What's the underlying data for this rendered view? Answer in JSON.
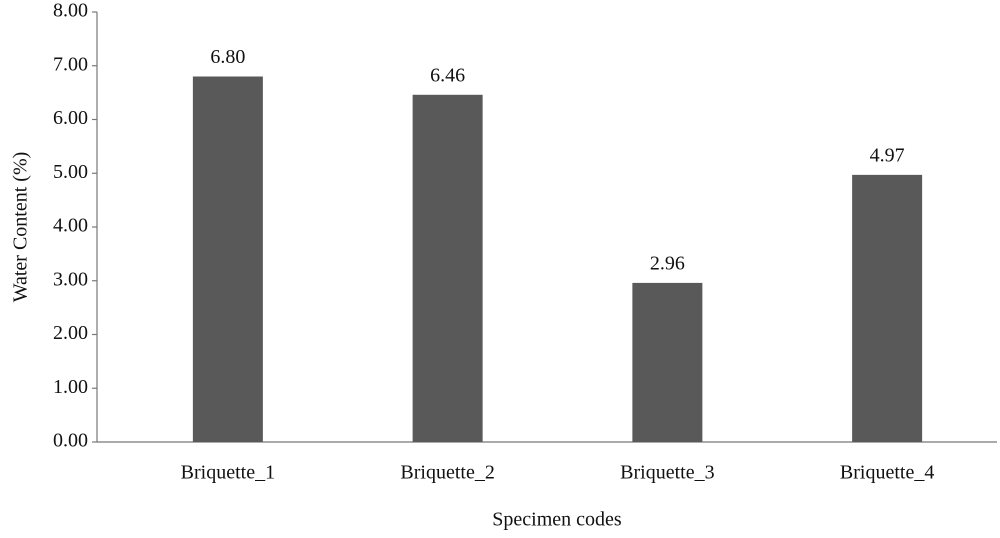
{
  "chart_data": {
    "type": "bar",
    "x_label": "Specimen codes",
    "y_label": "Water Content (%)",
    "categories": [
      "Briquette_1",
      "Briquette_2",
      "Briquette_3",
      "Briquette_4"
    ],
    "values": [
      6.8,
      6.46,
      2.96,
      4.97
    ],
    "value_labels": [
      "6.80",
      "6.46",
      "2.96",
      "4.97"
    ],
    "color": "#595959",
    "ylim": [
      0,
      8
    ],
    "yticks": [
      {
        "value": 0,
        "label": "0.00"
      },
      {
        "value": 1,
        "label": "1.00"
      },
      {
        "value": 2,
        "label": "2.00"
      },
      {
        "value": 3,
        "label": "3.00"
      },
      {
        "value": 4,
        "label": "4.00"
      },
      {
        "value": 5,
        "label": "5.00"
      },
      {
        "value": 6,
        "label": "6.00"
      },
      {
        "value": 7,
        "label": "7.00"
      },
      {
        "value": 8,
        "label": "8.00"
      }
    ],
    "grid": false
  }
}
